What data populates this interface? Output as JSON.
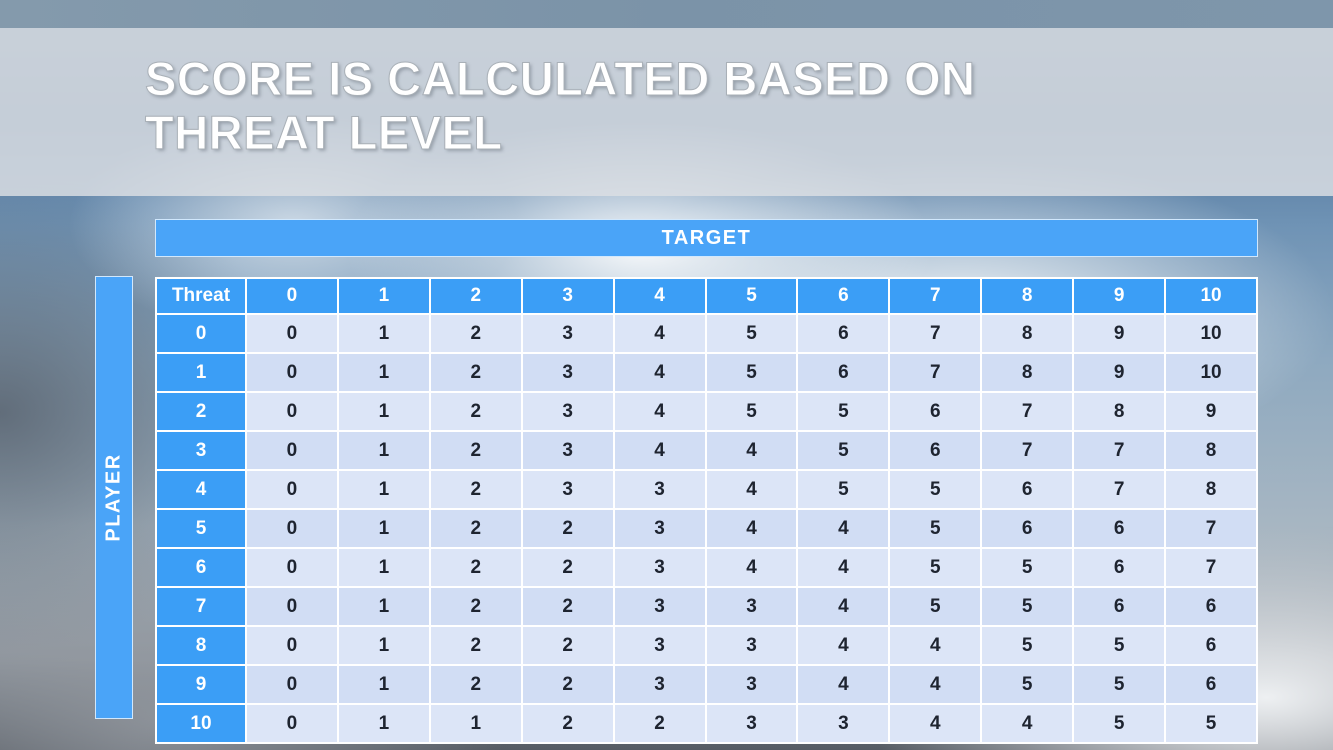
{
  "slide": {
    "title_line1": "SCORE IS CALCULATED BASED ON",
    "title_line2": "THREAT LEVEL"
  },
  "table": {
    "target_label": "TARGET",
    "player_label": "PLAYER",
    "corner_label": "Threat",
    "column_headers": [
      "0",
      "1",
      "2",
      "3",
      "4",
      "5",
      "6",
      "7",
      "8",
      "9",
      "10"
    ],
    "rows": [
      {
        "threat": "0",
        "values": [
          "0",
          "1",
          "2",
          "3",
          "4",
          "5",
          "6",
          "7",
          "8",
          "9",
          "10"
        ]
      },
      {
        "threat": "1",
        "values": [
          "0",
          "1",
          "2",
          "3",
          "4",
          "5",
          "6",
          "7",
          "8",
          "9",
          "10"
        ]
      },
      {
        "threat": "2",
        "values": [
          "0",
          "1",
          "2",
          "3",
          "4",
          "5",
          "5",
          "6",
          "7",
          "8",
          "9"
        ]
      },
      {
        "threat": "3",
        "values": [
          "0",
          "1",
          "2",
          "3",
          "4",
          "4",
          "5",
          "6",
          "7",
          "7",
          "8"
        ]
      },
      {
        "threat": "4",
        "values": [
          "0",
          "1",
          "2",
          "3",
          "3",
          "4",
          "5",
          "5",
          "6",
          "7",
          "8"
        ]
      },
      {
        "threat": "5",
        "values": [
          "0",
          "1",
          "2",
          "2",
          "3",
          "4",
          "4",
          "5",
          "6",
          "6",
          "7"
        ]
      },
      {
        "threat": "6",
        "values": [
          "0",
          "1",
          "2",
          "2",
          "3",
          "4",
          "4",
          "5",
          "5",
          "6",
          "7"
        ]
      },
      {
        "threat": "7",
        "values": [
          "0",
          "1",
          "2",
          "2",
          "3",
          "3",
          "4",
          "5",
          "5",
          "6",
          "6"
        ]
      },
      {
        "threat": "8",
        "values": [
          "0",
          "1",
          "2",
          "2",
          "3",
          "3",
          "4",
          "4",
          "5",
          "5",
          "6"
        ]
      },
      {
        "threat": "9",
        "values": [
          "0",
          "1",
          "2",
          "2",
          "3",
          "3",
          "4",
          "4",
          "5",
          "5",
          "6"
        ]
      },
      {
        "threat": "10",
        "values": [
          "0",
          "1",
          "1",
          "2",
          "2",
          "3",
          "3",
          "4",
          "4",
          "5",
          "5"
        ]
      }
    ]
  },
  "colors": {
    "header_blue": "#3b9ef6",
    "bar_blue": "#4aa4f8",
    "cell_light": "#dce5f7",
    "cell_alt": "#d1ddf4"
  }
}
